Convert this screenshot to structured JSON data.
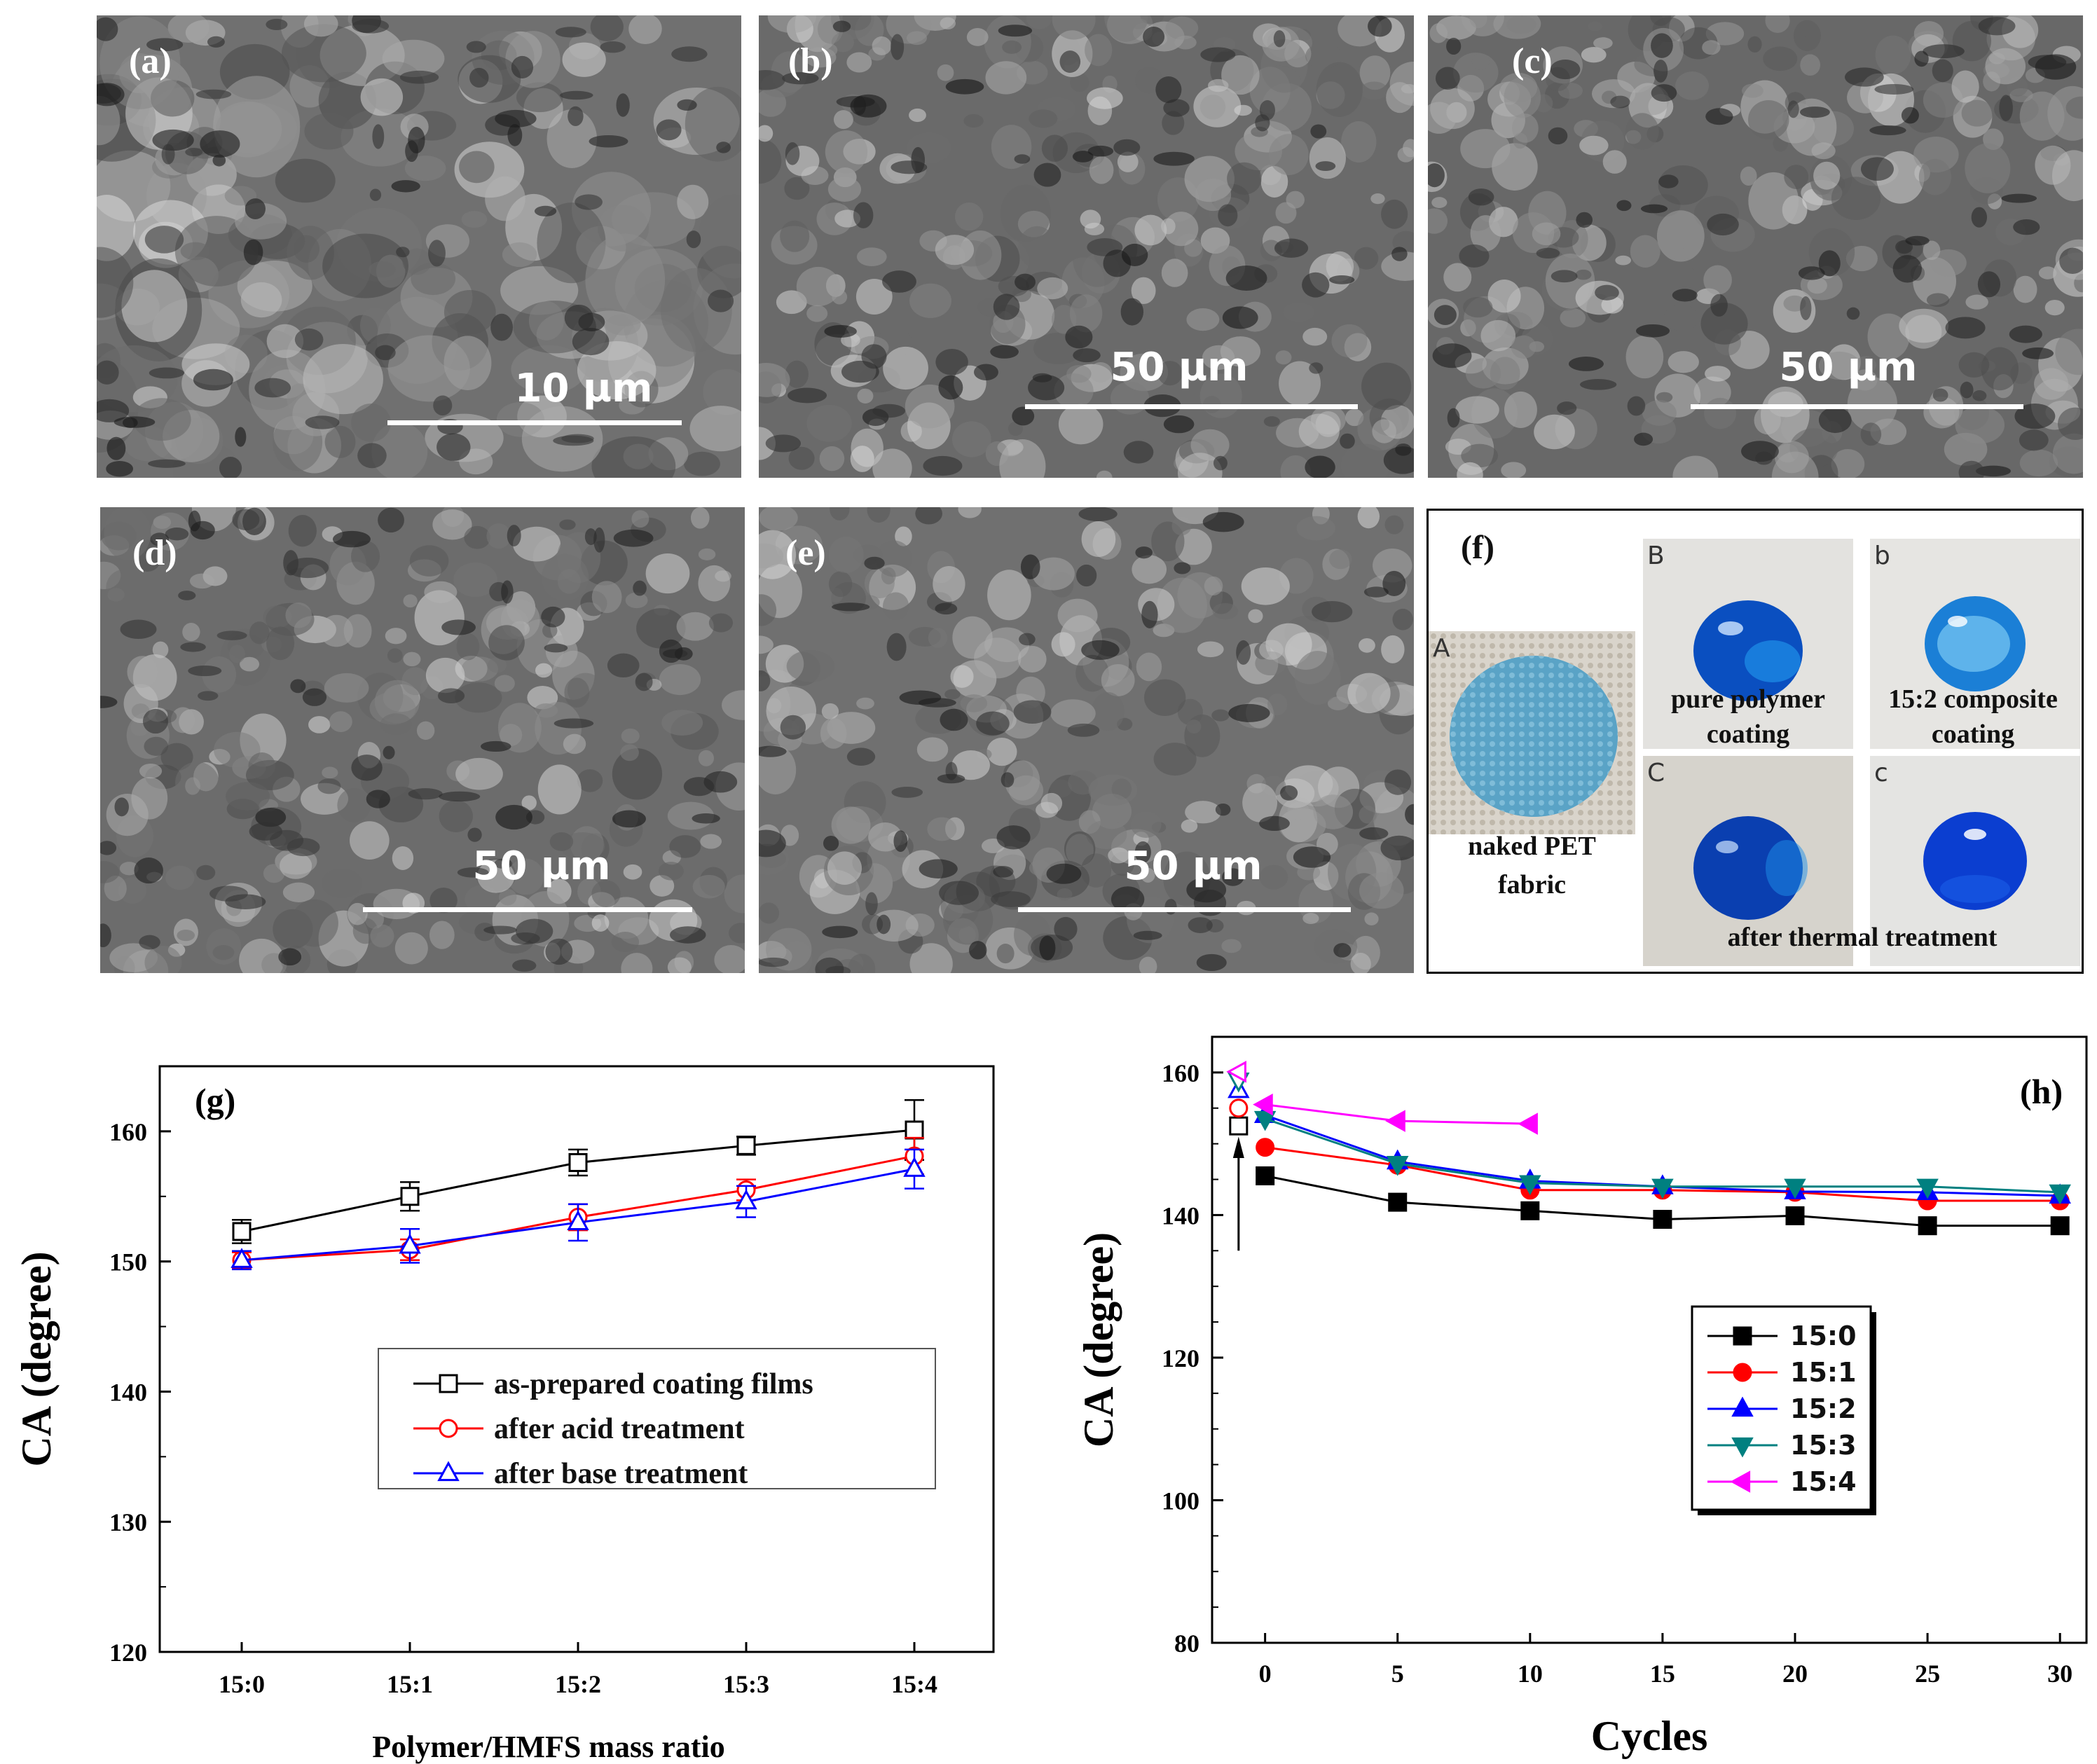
{
  "panels": {
    "a": {
      "label": "(a)",
      "scale": "10 µm"
    },
    "b": {
      "label": "(b)",
      "scale": "50 µm"
    },
    "c": {
      "label": "(c)",
      "scale": "50 µm"
    },
    "d": {
      "label": "(d)",
      "scale": "50 µm"
    },
    "e": {
      "label": "(e)",
      "scale": "50 µm"
    },
    "f": {
      "label": "(f)",
      "photo_A": {
        "letter": "A",
        "caption_line1": "naked PET",
        "caption_line2": "fabric"
      },
      "photo_B": {
        "letter": "B",
        "caption_line1": "pure polymer",
        "caption_line2": "coating"
      },
      "photo_b": {
        "letter": "b",
        "caption_line1": "15:2 composite",
        "caption_line2": "coating"
      },
      "photo_C": {
        "letter": "C"
      },
      "photo_c": {
        "letter": "c"
      },
      "bottom_caption": "after thermal treatment"
    }
  },
  "colors": {
    "black": "#000000",
    "red": "#ff0000",
    "blue": "#0000ff",
    "teal": "#008080",
    "magenta": "#ff00ff",
    "droplet": "#0a4fc0"
  },
  "chart_data": [
    {
      "id": "g",
      "label": "(g)",
      "type": "line",
      "xlabel": "Polymer/HMFS mass ratio",
      "ylabel": "CA (degree)",
      "categories": [
        "15:0",
        "15:1",
        "15:2",
        "15:3",
        "15:4"
      ],
      "ylim": [
        120,
        165
      ],
      "yticks": [
        120,
        130,
        140,
        150,
        160
      ],
      "legend_position": "center-right",
      "series": [
        {
          "name": "as-prepared coating films",
          "marker": "square",
          "color": "#000000",
          "values": [
            152.3,
            155.0,
            157.6,
            158.9,
            160.1
          ],
          "errors": [
            0.9,
            1.1,
            1.0,
            0.7,
            2.3
          ]
        },
        {
          "name": "after acid treatment",
          "marker": "circle",
          "color": "#ff0000",
          "values": [
            150.1,
            150.9,
            153.4,
            155.5,
            158.1
          ],
          "errors": [
            0.6,
            0.8,
            1.0,
            0.8,
            1.4
          ]
        },
        {
          "name": "after base treatment",
          "marker": "triangle-up",
          "color": "#0000ff",
          "values": [
            150.1,
            151.2,
            153.0,
            154.6,
            157.1
          ],
          "errors": [
            0.7,
            1.3,
            1.4,
            1.2,
            1.5
          ]
        }
      ]
    },
    {
      "id": "h",
      "label": "(h)",
      "type": "line",
      "xlabel": "Cycles",
      "ylabel": "CA (degree)",
      "xlim": [
        -2,
        31
      ],
      "ylim": [
        80,
        165
      ],
      "xticks": [
        0,
        5,
        10,
        15,
        20,
        25,
        30
      ],
      "yticks": [
        80,
        100,
        120,
        140,
        160
      ],
      "legend_position": "center",
      "initial_points_x": -1,
      "series": [
        {
          "name": "15:0",
          "marker": "square",
          "color": "#000000",
          "initial": 152.5,
          "x": [
            0,
            5,
            10,
            15,
            20,
            25,
            30
          ],
          "values": [
            145.5,
            141.8,
            140.6,
            139.4,
            139.9,
            138.5,
            138.5
          ]
        },
        {
          "name": "15:1",
          "marker": "circle",
          "color": "#ff0000",
          "initial": 155.0,
          "x": [
            0,
            5,
            10,
            15,
            20,
            25,
            30
          ],
          "values": [
            149.5,
            147.0,
            143.5,
            143.5,
            143.2,
            142.0,
            142.0
          ]
        },
        {
          "name": "15:2",
          "marker": "triangle-up",
          "color": "#0000ff",
          "initial": 157.5,
          "x": [
            0,
            5,
            10,
            15,
            20,
            25,
            30
          ],
          "values": [
            154.0,
            147.5,
            144.8,
            144.0,
            143.3,
            143.2,
            142.7
          ]
        },
        {
          "name": "15:3",
          "marker": "triangle-down",
          "color": "#008080",
          "initial": 158.9,
          "x": [
            0,
            5,
            10,
            15,
            20,
            25,
            30
          ],
          "values": [
            153.5,
            147.2,
            144.5,
            144.0,
            144.0,
            144.0,
            143.2
          ]
        },
        {
          "name": "15:4",
          "marker": "triangle-left",
          "color": "#ff00ff",
          "initial": 160.1,
          "x": [
            0,
            5,
            10
          ],
          "values": [
            155.5,
            153.2,
            152.8
          ]
        }
      ]
    }
  ]
}
